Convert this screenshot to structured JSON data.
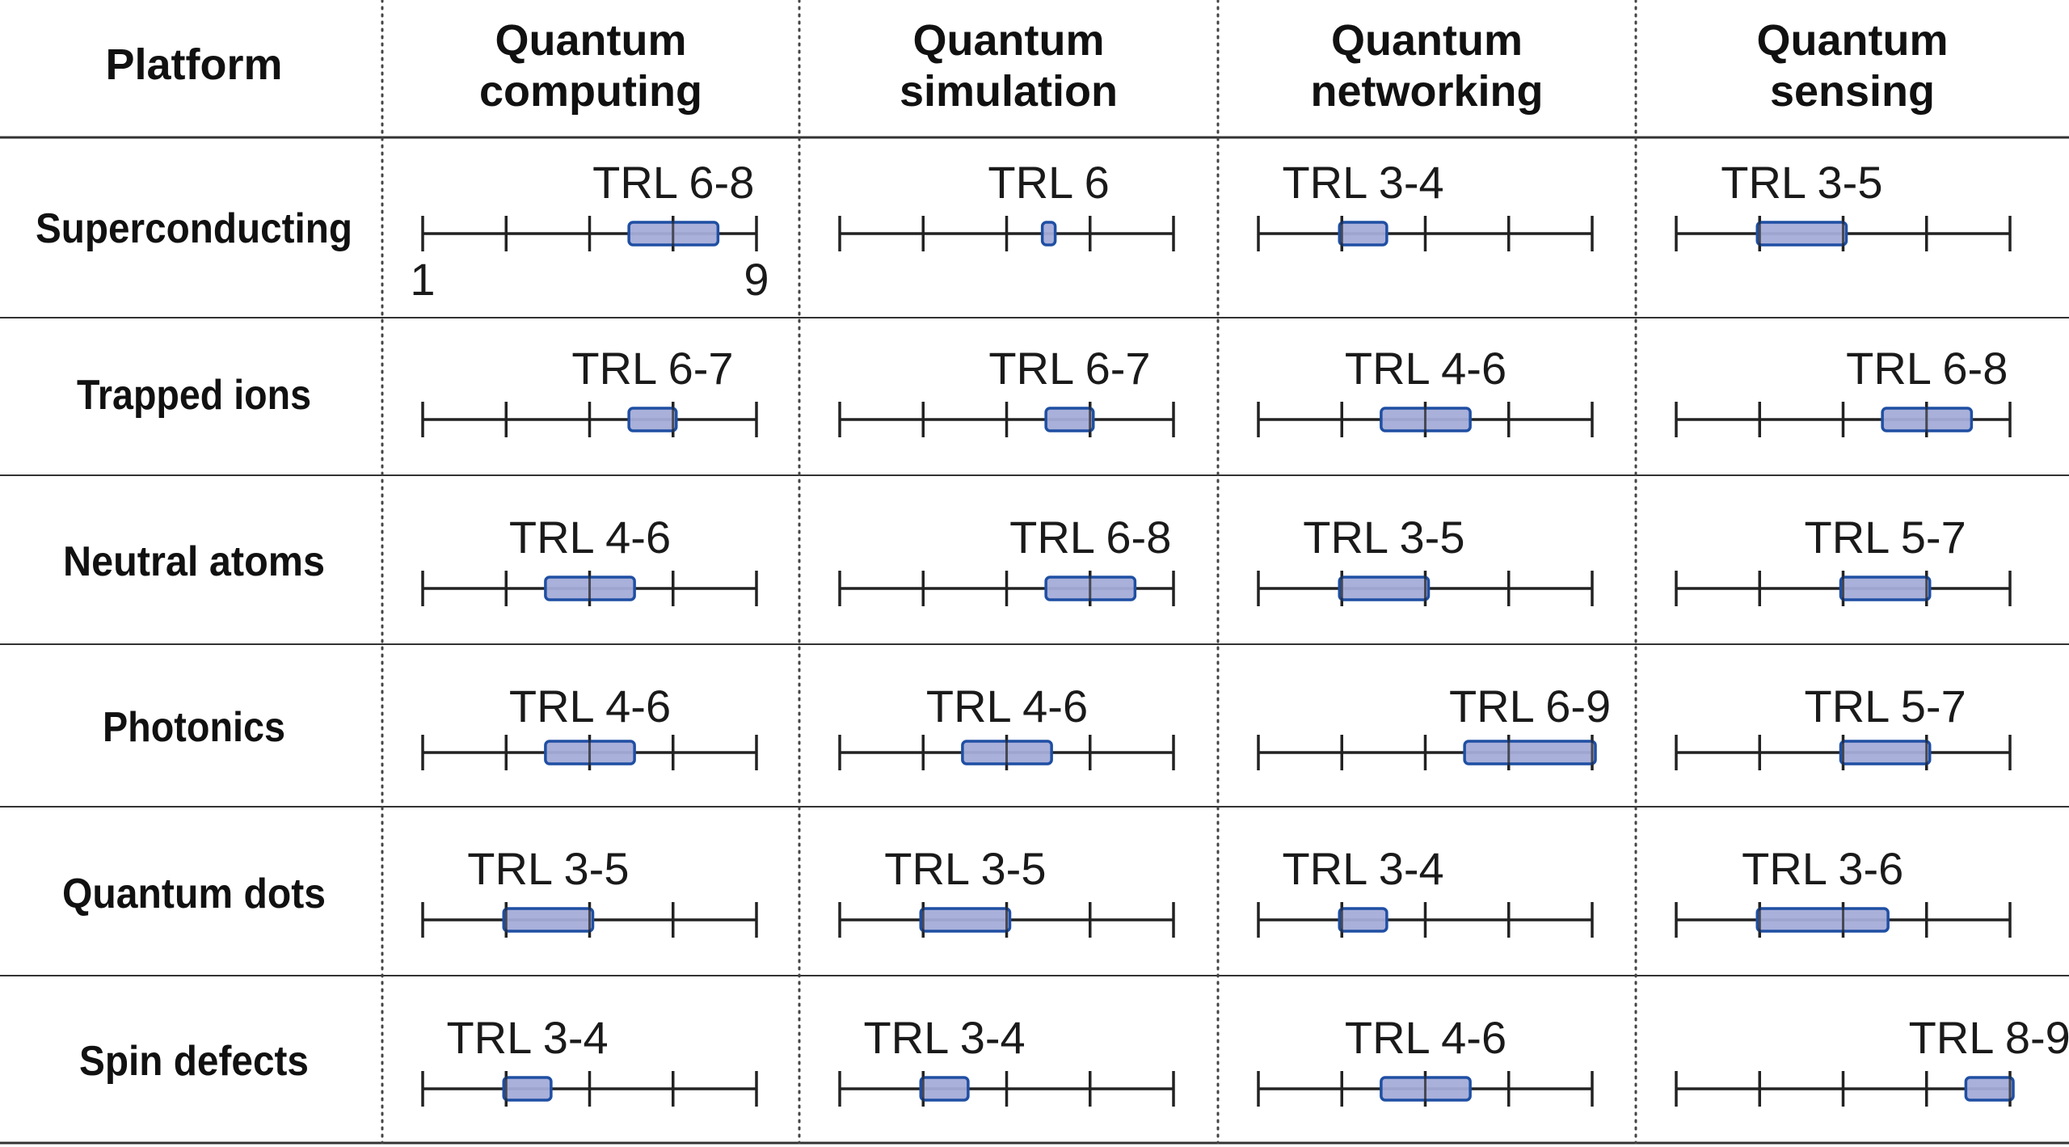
{
  "chart_data": {
    "type": "table",
    "scale": {
      "min": 1,
      "max": 9,
      "ticks": [
        1,
        3,
        5,
        7,
        9
      ],
      "min_label": "1",
      "max_label": "9"
    },
    "corner_header": "Platform",
    "columns": [
      {
        "line1": "Quantum",
        "line2": "computing"
      },
      {
        "line1": "Quantum",
        "line2": "simulation"
      },
      {
        "line1": "Quantum",
        "line2": "networking"
      },
      {
        "line1": "Quantum",
        "line2": "sensing"
      }
    ],
    "rows": [
      {
        "platform": "Superconducting",
        "cells": [
          {
            "label": "TRL 6-8",
            "range": [
              6,
              8
            ]
          },
          {
            "label": "TRL 6",
            "range": [
              6,
              6
            ]
          },
          {
            "label": "TRL 3-4",
            "range": [
              3,
              4
            ]
          },
          {
            "label": "TRL 3-5",
            "range": [
              3,
              5
            ]
          }
        ]
      },
      {
        "platform": "Trapped ions",
        "cells": [
          {
            "label": "TRL 6-7",
            "range": [
              6,
              7
            ]
          },
          {
            "label": "TRL 6-7",
            "range": [
              6,
              7
            ]
          },
          {
            "label": "TRL 4-6",
            "range": [
              4,
              6
            ]
          },
          {
            "label": "TRL 6-8",
            "range": [
              6,
              8
            ]
          }
        ]
      },
      {
        "platform": "Neutral atoms",
        "cells": [
          {
            "label": "TRL 4-6",
            "range": [
              4,
              6
            ]
          },
          {
            "label": "TRL 6-8",
            "range": [
              6,
              8
            ]
          },
          {
            "label": "TRL 3-5",
            "range": [
              3,
              5
            ]
          },
          {
            "label": "TRL 5-7",
            "range": [
              5,
              7
            ]
          }
        ]
      },
      {
        "platform": "Photonics",
        "cells": [
          {
            "label": "TRL 4-6",
            "range": [
              4,
              6
            ]
          },
          {
            "label": "TRL 4-6",
            "range": [
              4,
              6
            ]
          },
          {
            "label": "TRL 6-9",
            "range": [
              6,
              9
            ]
          },
          {
            "label": "TRL 5-7",
            "range": [
              5,
              7
            ]
          }
        ]
      },
      {
        "platform": "Quantum dots",
        "cells": [
          {
            "label": "TRL 3-5",
            "range": [
              3,
              5
            ]
          },
          {
            "label": "TRL 3-5",
            "range": [
              3,
              5
            ]
          },
          {
            "label": "TRL 3-4",
            "range": [
              3,
              4
            ]
          },
          {
            "label": "TRL 3-6",
            "range": [
              3,
              6
            ]
          }
        ]
      },
      {
        "platform": "Spin defects",
        "cells": [
          {
            "label": "TRL 3-4",
            "range": [
              3,
              4
            ]
          },
          {
            "label": "TRL 3-4",
            "range": [
              3,
              4
            ]
          },
          {
            "label": "TRL 4-6",
            "range": [
              4,
              6
            ]
          },
          {
            "label": "TRL 8-9",
            "range": [
              8,
              9
            ]
          }
        ]
      }
    ],
    "colors": {
      "bar_fill": "#a4acd8",
      "bar_stroke": "#1f4fa3",
      "axis": "#222222"
    }
  }
}
